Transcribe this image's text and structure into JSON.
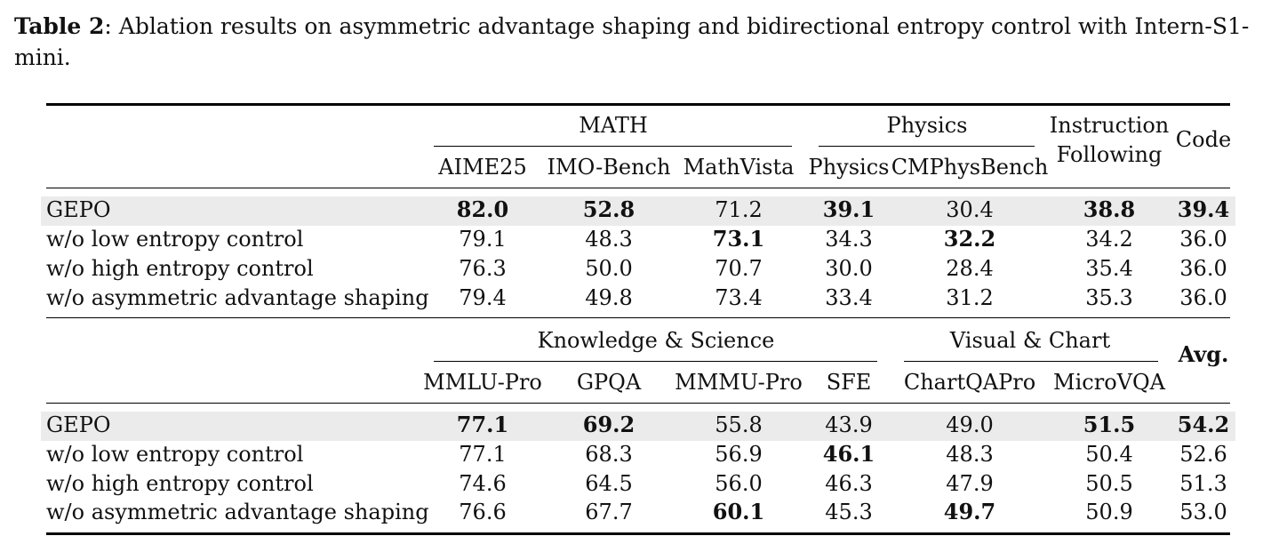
{
  "caption": {
    "label": "Table",
    "number": "2",
    "text": ": Ablation results on asymmetric advantage shaping and bidirectional entropy control with Intern-S1-mini."
  },
  "table1": {
    "groups": {
      "math": "MATH",
      "physics": "Physics",
      "instr_1": "Instruction",
      "instr_2": "Following",
      "code": "Code"
    },
    "columns": [
      "AIME25",
      "IMO-Bench",
      "MathVista",
      "Physics",
      "CMPhysBench"
    ],
    "rows": [
      {
        "label": "GEPO",
        "values": [
          "82.0",
          "52.8",
          "71.2",
          "39.1",
          "30.4",
          "38.8",
          "39.4"
        ]
      },
      {
        "label": "w/o low entropy control",
        "values": [
          "79.1",
          "48.3",
          "73.1",
          "34.3",
          "32.2",
          "34.2",
          "36.0"
        ]
      },
      {
        "label": "w/o high entropy control",
        "values": [
          "76.3",
          "50.0",
          "70.7",
          "30.0",
          "28.4",
          "35.4",
          "36.0"
        ]
      },
      {
        "label": "w/o asymmetric advantage shaping",
        "values": [
          "79.4",
          "49.8",
          "73.4",
          "33.4",
          "31.2",
          "35.3",
          "36.0"
        ]
      }
    ]
  },
  "table2": {
    "groups": {
      "knowledge": "Knowledge & Science",
      "visual": "Visual & Chart",
      "avg": "Avg."
    },
    "columns": [
      "MMLU-Pro",
      "GPQA",
      "MMMU-Pro",
      "SFE",
      "ChartQAPro",
      "MicroVQA"
    ],
    "rows": [
      {
        "label": "GEPO",
        "values": [
          "77.1",
          "69.2",
          "55.8",
          "43.9",
          "49.0",
          "51.5",
          "54.2"
        ]
      },
      {
        "label": "w/o low entropy control",
        "values": [
          "77.1",
          "68.3",
          "56.9",
          "46.1",
          "48.3",
          "50.4",
          "52.6"
        ]
      },
      {
        "label": "w/o high entropy control",
        "values": [
          "74.6",
          "64.5",
          "56.0",
          "46.3",
          "47.9",
          "50.5",
          "51.3"
        ]
      },
      {
        "label": "w/o asymmetric advantage shaping",
        "values": [
          "76.6",
          "67.7",
          "60.1",
          "45.3",
          "49.7",
          "50.9",
          "53.0"
        ]
      }
    ]
  }
}
